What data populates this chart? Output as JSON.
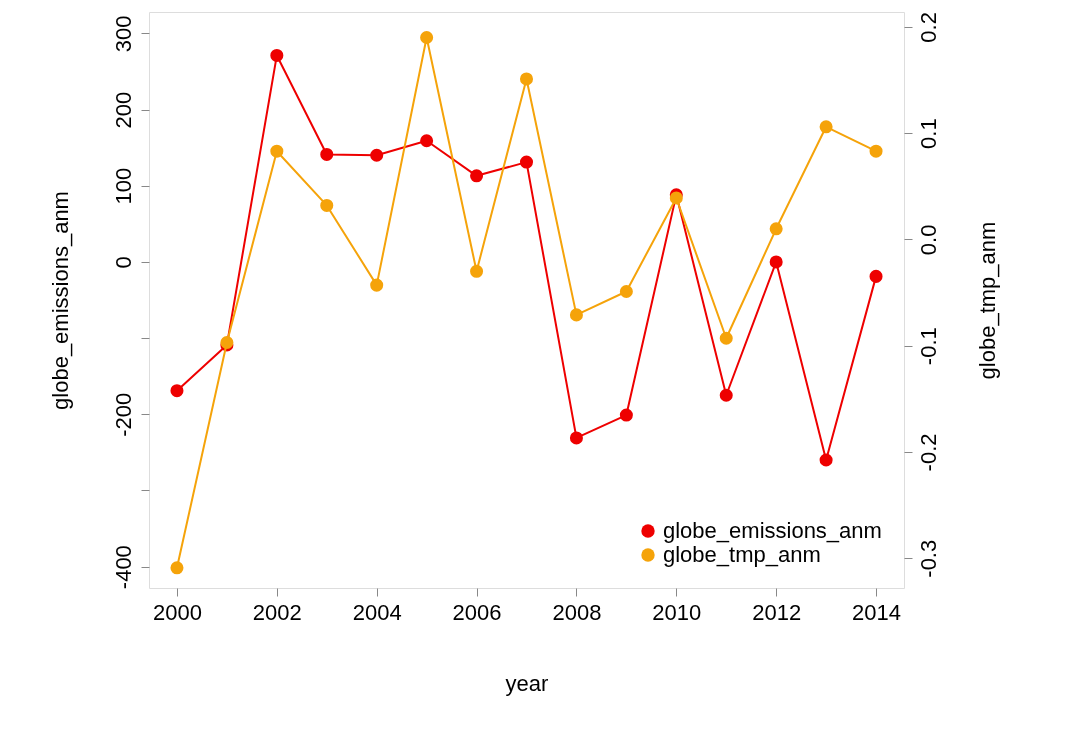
{
  "chart_data": {
    "type": "line",
    "xlabel": "year",
    "ylabel": "globe_emissions_anm",
    "y2label": "globe_tmp_anm",
    "x": [
      2000,
      2001,
      2002,
      2003,
      2004,
      2005,
      2006,
      2007,
      2008,
      2009,
      2010,
      2011,
      2012,
      2013,
      2014
    ],
    "series": [
      {
        "name": "globe_emissions_anm",
        "color": "#ee0000",
        "values": [
          -169,
          -109,
          271,
          141,
          140,
          159,
          113,
          131,
          -231,
          -201,
          88,
          -175,
          0,
          -260,
          -19
        ]
      },
      {
        "name": "globe_tmp_anm",
        "color": "#f5a30a",
        "axis": "y2",
        "values": [
          -0.309,
          -0.097,
          0.083,
          0.032,
          -0.043,
          0.19,
          -0.03,
          0.151,
          -0.071,
          -0.049,
          0.039,
          -0.093,
          0.01,
          0.106,
          0.083
        ]
      }
    ],
    "xlim": [
      1999.44,
      2014.56
    ],
    "xticks": [
      2000,
      2002,
      2004,
      2006,
      2008,
      2010,
      2012,
      2014
    ],
    "ylim": [
      -428,
      328
    ],
    "yticks": [
      300,
      200,
      100,
      0,
      {
        "value": -100,
        "label": null
      },
      -200,
      {
        "value": -300,
        "label": null
      },
      -400
    ],
    "y2lim": [
      -0.328,
      0.214
    ],
    "y2ticks": [
      0.2,
      0.1,
      {
        "value": 0,
        "label": "0.0"
      },
      -0.1,
      -0.2,
      -0.3
    ],
    "marker": "circle",
    "line_style": "solid",
    "grid": false,
    "legend": "bottom right"
  }
}
